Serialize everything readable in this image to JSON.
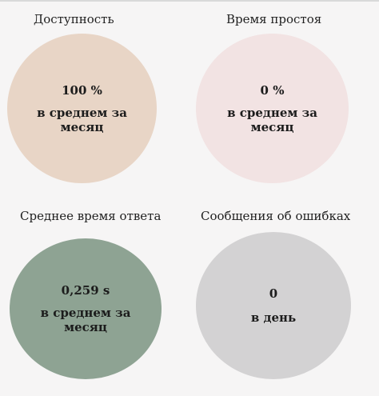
{
  "tiles": [
    {
      "title": "Доступность",
      "value": "100 %",
      "caption": "в среднем за месяц",
      "color": "#e8d5c6"
    },
    {
      "title": "Время простоя",
      "value": "0 %",
      "caption": "в среднем за месяц",
      "color": "#f2e3e3"
    },
    {
      "title": "Среднее время ответа",
      "value": "0,259 s",
      "caption": "в среднем за месяц",
      "color": "#8ea393"
    },
    {
      "title": "Сообщения об ошибках",
      "value": "0",
      "caption": "в день",
      "color": "#d3d2d3"
    }
  ]
}
